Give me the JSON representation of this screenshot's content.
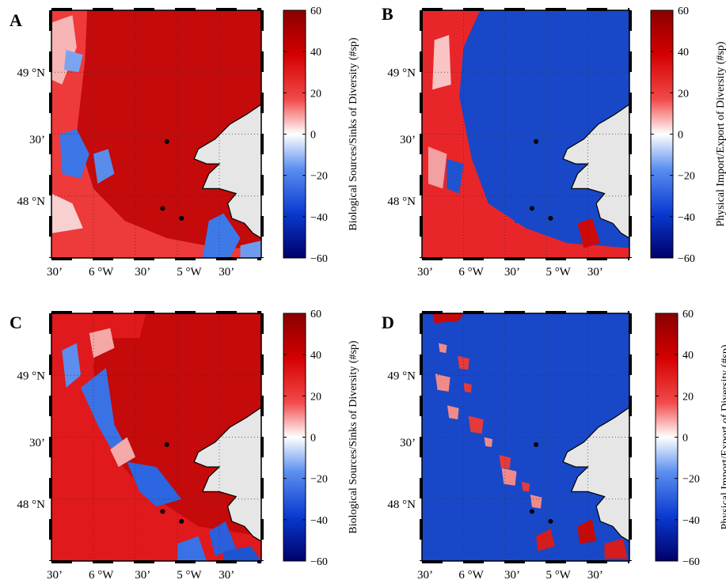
{
  "chart_data": [
    {
      "type": "heatmap",
      "panel": "A",
      "colorbar_label": "Biological Sources/Sinks of Diversity (#sp)",
      "colorbar_range": [
        -60,
        60
      ],
      "colorbar_ticks": [
        "60",
        "40",
        "20",
        "0",
        "−20",
        "−40",
        "−60"
      ],
      "x_ticks": [
        "30’",
        "6 °W",
        "30’",
        "5 °W",
        "30’"
      ],
      "y_ticks": [
        "49 °N",
        "30’",
        "48 °N"
      ],
      "pattern": "mostly positive (red) offshore, blue patches west and south"
    },
    {
      "type": "heatmap",
      "panel": "B",
      "colorbar_label": "Physical Import/Export of Diversity (#sp)",
      "colorbar_range": [
        -60,
        60
      ],
      "colorbar_ticks": [
        "60",
        "40",
        "20",
        "0",
        "−20",
        "−40",
        "−60"
      ],
      "x_ticks": [
        "30’",
        "6 °W",
        "30’",
        "5 °W",
        "30’"
      ],
      "y_ticks": [
        "49 °N",
        "30’",
        "48 °N"
      ],
      "pattern": "mostly negative (blue) interior, red border along west and south"
    },
    {
      "type": "heatmap",
      "panel": "C",
      "colorbar_label": "Biological Sources/Sinks of Diversity (#sp)",
      "colorbar_range": [
        -60,
        60
      ],
      "colorbar_ticks": [
        "60",
        "40",
        "20",
        "0",
        "−20",
        "−40",
        "−60"
      ],
      "x_ticks": [
        "30’",
        "6 °W",
        "30’",
        "5 °W",
        "30’"
      ],
      "y_ticks": [
        "49 °N",
        "30’",
        "48 °N"
      ],
      "pattern": "mostly positive (red) with blue diagonal front band"
    },
    {
      "type": "heatmap",
      "panel": "D",
      "colorbar_label": "Physical Import/Export of Diversity (#sp)",
      "colorbar_range": [
        -60,
        60
      ],
      "colorbar_ticks": [
        "60",
        "40",
        "20",
        "0",
        "−20",
        "−40",
        "−60"
      ],
      "x_ticks": [
        "30’",
        "6 °W",
        "30’",
        "5 °W",
        "30’"
      ],
      "y_ticks": [
        "49 °N",
        "30’",
        "48 °N"
      ],
      "pattern": "mostly negative (blue) with red patches along front band"
    }
  ],
  "colors": {
    "deep_blue": "#00006a",
    "blue": "#1f5fd6",
    "white": "#ffffff",
    "red": "#e8141a",
    "dark_red": "#b00000",
    "land": "#e6e6e6"
  }
}
